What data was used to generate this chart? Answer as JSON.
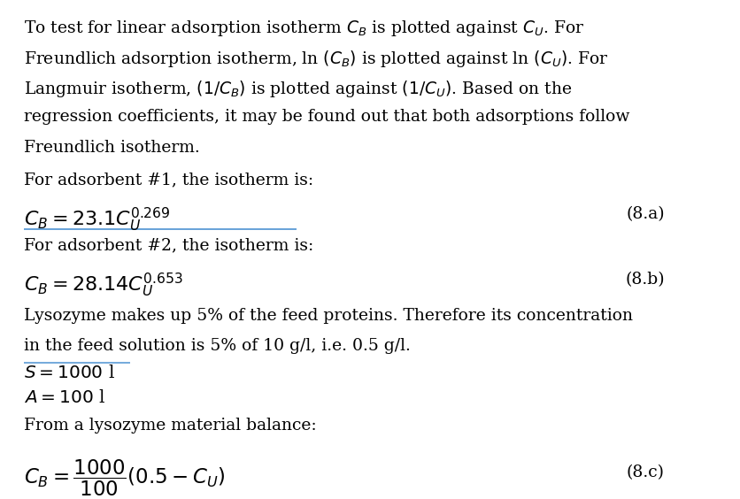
{
  "bg_color": "#ffffff",
  "text_color": "#000000",
  "fig_width": 8.37,
  "fig_height": 5.64,
  "fontsize_body": 13.5,
  "fontsize_math": 14.5,
  "line1": "To test for linear adsorption isotherm $C_B$ is plotted against $C_U$. For",
  "line2": "Freundlich adsorption isotherm, ln $(C_B)$ is plotted against ln $(C_U)$. For",
  "line3": "Langmuir isotherm, $(1/C_B)$ is plotted against $(1/C_U)$. Based on the",
  "line4": "regression coefficients, it may be found out that both adsorptions follow",
  "line5": "Freundlich isotherm.",
  "line6": "For adsorbent #1, the isotherm is:",
  "eq1_label": "(8.a)",
  "eq2_label": "(8.b)",
  "eq3_label": "(8.c)",
  "line7": "For adsorbent #2, the isotherm is:",
  "line8": "Lysozyme makes up 5% of the feed proteins. Therefore its concentration",
  "line9": "in the feed solution is 5% of 10 g/l, i.e. 0.5 g/l.",
  "line12": "From a lysozyme material balance:",
  "blue_line_color": "#5b9bd5",
  "black_line_color": "#000000"
}
